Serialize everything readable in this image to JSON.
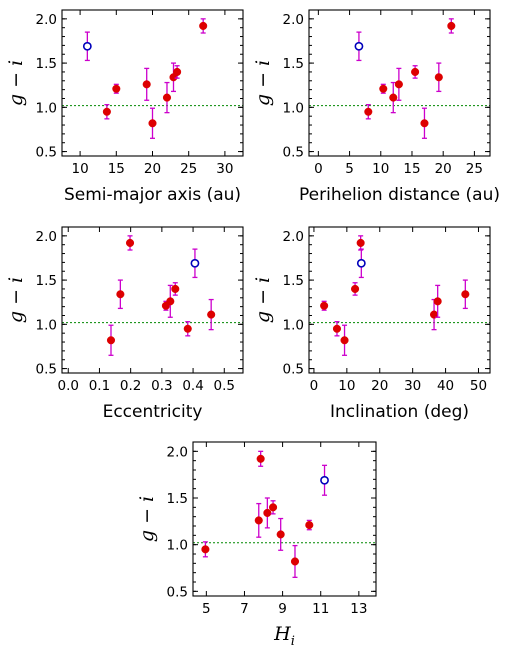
{
  "chart_data": [
    {
      "type": "scatter",
      "xlabel": "Semi-major axis (au)",
      "ylabel": "g − i",
      "xlim": [
        7.5,
        32.5
      ],
      "ylim": [
        0.45,
        2.1
      ],
      "xticks": [
        10,
        15,
        20,
        25,
        30
      ],
      "yticks": [
        0.5,
        1.0,
        1.5,
        2.0
      ],
      "reference_line": 1.02,
      "series": [
        {
          "marker": "filled",
          "color": "#dd0000",
          "points": [
            {
              "x": 13.7,
              "y": 0.95,
              "err": 0.08
            },
            {
              "x": 15.0,
              "y": 1.21,
              "err": 0.05
            },
            {
              "x": 19.2,
              "y": 1.26,
              "err": 0.18
            },
            {
              "x": 20.0,
              "y": 0.82,
              "err": 0.17
            },
            {
              "x": 22.0,
              "y": 1.11,
              "err": 0.17
            },
            {
              "x": 22.9,
              "y": 1.34,
              "err": 0.16
            },
            {
              "x": 23.4,
              "y": 1.4,
              "err": 0.07
            },
            {
              "x": 27.0,
              "y": 1.92,
              "err": 0.08
            }
          ]
        },
        {
          "marker": "open",
          "color": "#0000bb",
          "points": [
            {
              "x": 11.0,
              "y": 1.69,
              "err": 0.16
            }
          ]
        }
      ]
    },
    {
      "type": "scatter",
      "xlabel": "Perihelion distance (au)",
      "ylabel": "g − i",
      "xlim": [
        -1.5,
        27.5
      ],
      "ylim": [
        0.45,
        2.1
      ],
      "xticks": [
        0,
        5,
        10,
        15,
        20,
        25
      ],
      "yticks": [
        0.5,
        1.0,
        1.5,
        2.0
      ],
      "reference_line": 1.02,
      "series": [
        {
          "marker": "filled",
          "color": "#dd0000",
          "points": [
            {
              "x": 8.0,
              "y": 0.95,
              "err": 0.08
            },
            {
              "x": 10.4,
              "y": 1.21,
              "err": 0.05
            },
            {
              "x": 12.0,
              "y": 1.11,
              "err": 0.17
            },
            {
              "x": 12.9,
              "y": 1.26,
              "err": 0.18
            },
            {
              "x": 15.5,
              "y": 1.4,
              "err": 0.07
            },
            {
              "x": 17.0,
              "y": 0.82,
              "err": 0.17
            },
            {
              "x": 19.3,
              "y": 1.34,
              "err": 0.16
            },
            {
              "x": 21.3,
              "y": 1.92,
              "err": 0.08
            }
          ]
        },
        {
          "marker": "open",
          "color": "#0000bb",
          "points": [
            {
              "x": 6.5,
              "y": 1.69,
              "err": 0.16
            }
          ]
        }
      ]
    },
    {
      "type": "scatter",
      "xlabel": "Eccentricity",
      "ylabel": "g − i",
      "xlim": [
        -0.02,
        0.56
      ],
      "ylim": [
        0.45,
        2.1
      ],
      "xticks": [
        0.0,
        0.1,
        0.2,
        0.3,
        0.4,
        0.5
      ],
      "yticks": [
        0.5,
        1.0,
        1.5,
        2.0
      ],
      "reference_line": 1.02,
      "series": [
        {
          "marker": "filled",
          "color": "#dd0000",
          "points": [
            {
              "x": 0.137,
              "y": 0.82,
              "err": 0.17
            },
            {
              "x": 0.167,
              "y": 1.34,
              "err": 0.16
            },
            {
              "x": 0.198,
              "y": 1.92,
              "err": 0.08
            },
            {
              "x": 0.313,
              "y": 1.21,
              "err": 0.05
            },
            {
              "x": 0.327,
              "y": 1.26,
              "err": 0.18
            },
            {
              "x": 0.343,
              "y": 1.4,
              "err": 0.07
            },
            {
              "x": 0.383,
              "y": 0.95,
              "err": 0.08
            },
            {
              "x": 0.458,
              "y": 1.11,
              "err": 0.17
            }
          ]
        },
        {
          "marker": "open",
          "color": "#0000bb",
          "points": [
            {
              "x": 0.406,
              "y": 1.69,
              "err": 0.16
            }
          ]
        }
      ]
    },
    {
      "type": "scatter",
      "xlabel": "Inclination (deg)",
      "ylabel": "g − i",
      "xlim": [
        -1.5,
        53.5
      ],
      "ylim": [
        0.45,
        2.1
      ],
      "xticks": [
        0,
        10,
        20,
        30,
        40,
        50
      ],
      "yticks": [
        0.5,
        1.0,
        1.5,
        2.0
      ],
      "reference_line": 1.02,
      "series": [
        {
          "marker": "filled",
          "color": "#dd0000",
          "points": [
            {
              "x": 3.1,
              "y": 1.21,
              "err": 0.05
            },
            {
              "x": 7.0,
              "y": 0.95,
              "err": 0.08
            },
            {
              "x": 9.3,
              "y": 0.82,
              "err": 0.17
            },
            {
              "x": 12.5,
              "y": 1.4,
              "err": 0.07
            },
            {
              "x": 14.2,
              "y": 1.92,
              "err": 0.08
            },
            {
              "x": 36.5,
              "y": 1.11,
              "err": 0.17
            },
            {
              "x": 37.6,
              "y": 1.26,
              "err": 0.18
            },
            {
              "x": 46.0,
              "y": 1.34,
              "err": 0.16
            }
          ]
        },
        {
          "marker": "open",
          "color": "#0000bb",
          "points": [
            {
              "x": 14.4,
              "y": 1.69,
              "err": 0.16
            }
          ]
        }
      ]
    },
    {
      "type": "scatter",
      "xlabel": "H_i",
      "ylabel": "g − i",
      "xlim": [
        4.3,
        13.9
      ],
      "ylim": [
        0.45,
        2.1
      ],
      "xticks": [
        5,
        7,
        9,
        11,
        13
      ],
      "yticks": [
        0.5,
        1.0,
        1.5,
        2.0
      ],
      "reference_line": 1.02,
      "series": [
        {
          "marker": "filled",
          "color": "#dd0000",
          "points": [
            {
              "x": 4.95,
              "y": 0.95,
              "err": 0.08
            },
            {
              "x": 7.75,
              "y": 1.26,
              "err": 0.18
            },
            {
              "x": 7.85,
              "y": 1.92,
              "err": 0.08
            },
            {
              "x": 8.2,
              "y": 1.34,
              "err": 0.16
            },
            {
              "x": 8.5,
              "y": 1.4,
              "err": 0.07
            },
            {
              "x": 8.9,
              "y": 1.11,
              "err": 0.17
            },
            {
              "x": 9.65,
              "y": 0.82,
              "err": 0.17
            },
            {
              "x": 10.4,
              "y": 1.21,
              "err": 0.05
            }
          ]
        },
        {
          "marker": "open",
          "color": "#0000bb",
          "points": [
            {
              "x": 11.2,
              "y": 1.69,
              "err": 0.16
            }
          ]
        }
      ]
    }
  ]
}
